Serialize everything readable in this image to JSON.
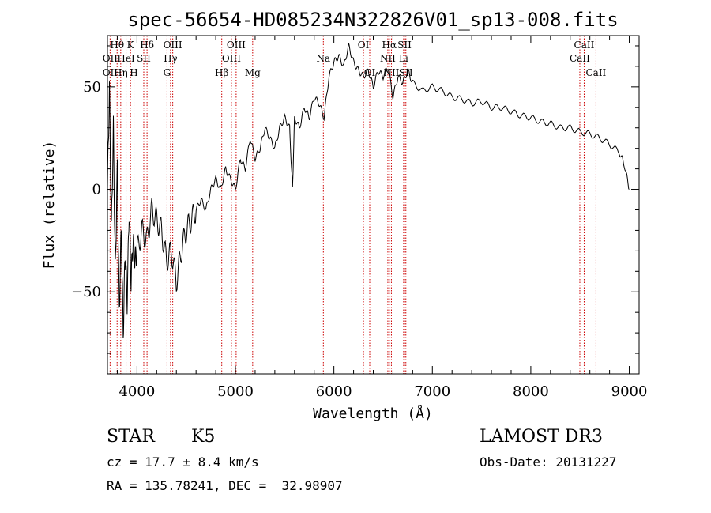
{
  "chart_data": {
    "type": "line",
    "title": "spec-56654-HD085234N322826V01_sp13-008.fits",
    "xlabel": "Wavelength (Å)",
    "ylabel": "Flux (relative)",
    "xlim": [
      3700,
      9100
    ],
    "ylim": [
      -90,
      75
    ],
    "x_ticks": [
      4000,
      5000,
      6000,
      7000,
      8000,
      9000
    ],
    "y_ticks": [
      -50,
      0,
      50
    ],
    "grid": false,
    "series": [
      {
        "x": [
          3700,
          3720,
          3740,
          3760,
          3780,
          3800,
          3820,
          3840,
          3860,
          3880,
          3900,
          3920,
          3940,
          3960,
          3980,
          4000,
          4050,
          4100,
          4150,
          4200,
          4250,
          4300,
          4350,
          4400,
          4450,
          4500,
          4550,
          4600,
          4650,
          4700,
          4750,
          4800,
          4850,
          4900,
          4950,
          5000,
          5050,
          5100,
          5150,
          5200,
          5250,
          5300,
          5350,
          5400,
          5450,
          5500,
          5550,
          5580,
          5600,
          5650,
          5700,
          5750,
          5800,
          5850,
          5900,
          5950,
          6000,
          6050,
          6100,
          6150,
          6200,
          6250,
          6300,
          6350,
          6400,
          6450,
          6500,
          6550,
          6600,
          6650,
          6700,
          6750,
          6800,
          6900,
          7000,
          7100,
          7200,
          7300,
          7400,
          7500,
          7600,
          7700,
          7800,
          7900,
          8000,
          8100,
          8200,
          8300,
          8400,
          8500,
          8600,
          8700,
          8800,
          8900,
          8950,
          9000
        ],
        "y": [
          0,
          50,
          -20,
          30,
          -40,
          10,
          -60,
          -20,
          -70,
          -30,
          -55,
          -10,
          -45,
          -25,
          -35,
          -30,
          -20,
          -25,
          -10,
          -15,
          -20,
          -35,
          -30,
          -45,
          -30,
          -20,
          -15,
          -10,
          -5,
          -10,
          0,
          5,
          0,
          10,
          5,
          0,
          15,
          10,
          25,
          15,
          20,
          30,
          25,
          20,
          30,
          35,
          30,
          0,
          35,
          30,
          40,
          35,
          45,
          42,
          35,
          55,
          62,
          65,
          60,
          70,
          62,
          58,
          55,
          58,
          50,
          58,
          55,
          60,
          45,
          55,
          52,
          58,
          52,
          48,
          50,
          48,
          45,
          44,
          42,
          43,
          40,
          40,
          38,
          36,
          35,
          33,
          32,
          30,
          30,
          28,
          27,
          25,
          22,
          18,
          12,
          0
        ]
      }
    ],
    "line_labels": [
      {
        "text": "Hθ",
        "wl": 3798,
        "row": 1
      },
      {
        "text": "OII",
        "wl": 3727,
        "row": 2
      },
      {
        "text": "OII",
        "wl": 3727,
        "row": 3
      },
      {
        "text": "HeI",
        "wl": 3889,
        "row": 2
      },
      {
        "text": "Hη",
        "wl": 3835,
        "row": 3
      },
      {
        "text": "K",
        "wl": 3934,
        "row": 1
      },
      {
        "text": "H",
        "wl": 3969,
        "row": 3
      },
      {
        "text": "SII",
        "wl": 4069,
        "row": 2
      },
      {
        "text": "Hδ",
        "wl": 4102,
        "row": 1
      },
      {
        "text": "OIII",
        "wl": 4363,
        "row": 1
      },
      {
        "text": "Hγ",
        "wl": 4341,
        "row": 2
      },
      {
        "text": "G",
        "wl": 4305,
        "row": 3
      },
      {
        "text": "Hβ",
        "wl": 4861,
        "row": 3
      },
      {
        "text": "OIII",
        "wl": 5007,
        "row": 1
      },
      {
        "text": "OIII",
        "wl": 4959,
        "row": 2
      },
      {
        "text": "Mg",
        "wl": 5175,
        "row": 3
      },
      {
        "text": "Na",
        "wl": 5893,
        "row": 2
      },
      {
        "text": "OI",
        "wl": 6300,
        "row": 1
      },
      {
        "text": "OI",
        "wl": 6364,
        "row": 3
      },
      {
        "text": "Hα",
        "wl": 6563,
        "row": 1
      },
      {
        "text": "SII",
        "wl": 6717,
        "row": 1
      },
      {
        "text": "NII",
        "wl": 6548,
        "row": 2
      },
      {
        "text": "Li",
        "wl": 6708,
        "row": 2
      },
      {
        "text": "NII",
        "wl": 6584,
        "row": 3
      },
      {
        "text": "SII",
        "wl": 6731,
        "row": 3
      },
      {
        "text": "CaII",
        "wl": 8542,
        "row": 1
      },
      {
        "text": "CaII",
        "wl": 8498,
        "row": 2
      },
      {
        "text": "CaII",
        "wl": 8662,
        "row": 3
      }
    ],
    "line_markers_wl": [
      3727,
      3798,
      3835,
      3889,
      3934,
      3969,
      4069,
      4102,
      4305,
      4341,
      4363,
      4861,
      4959,
      5007,
      5175,
      5893,
      6300,
      6364,
      6548,
      6563,
      6584,
      6708,
      6717,
      6731,
      8498,
      8542,
      8662
    ],
    "marker_color": "#cc0000",
    "line_color": "#000000"
  },
  "info": {
    "object_class": "STAR",
    "subclass": "K5",
    "survey": "LAMOST DR3",
    "cz": "cz = 17.7 ± 8.4 km/s",
    "obs_date": "Obs-Date: 20131227",
    "coords": "RA = 135.78241, DEC =  32.98907"
  }
}
